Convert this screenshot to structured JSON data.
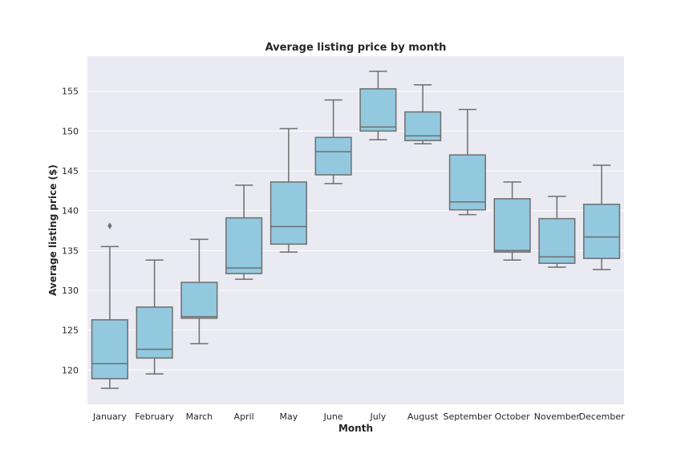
{
  "chart_data": {
    "type": "box",
    "title": "Average listing price by month",
    "xlabel": "Month",
    "ylabel": "Average listing price ($)",
    "ylim": [
      115.7,
      159.4
    ],
    "yticks": [
      120,
      125,
      130,
      135,
      140,
      145,
      150,
      155
    ],
    "grid": true,
    "colors": {
      "box_fill": "#92c9df",
      "box_line": "#6e6e6e",
      "background": "#eaeaf2",
      "grid": "#ffffff"
    },
    "categories": [
      "January",
      "February",
      "March",
      "April",
      "May",
      "June",
      "July",
      "August",
      "September",
      "October",
      "November",
      "December"
    ],
    "boxes": [
      {
        "whisker_low": 117.7,
        "q1": 118.9,
        "median": 120.8,
        "q3": 126.3,
        "whisker_high": 135.5,
        "outliers": [
          138.1
        ]
      },
      {
        "whisker_low": 119.5,
        "q1": 121.5,
        "median": 122.6,
        "q3": 127.9,
        "whisker_high": 133.8,
        "outliers": []
      },
      {
        "whisker_low": 123.3,
        "q1": 126.5,
        "median": 126.7,
        "q3": 131.0,
        "whisker_high": 136.4,
        "outliers": []
      },
      {
        "whisker_low": 131.4,
        "q1": 132.1,
        "median": 132.8,
        "q3": 139.1,
        "whisker_high": 143.2,
        "outliers": []
      },
      {
        "whisker_low": 134.8,
        "q1": 135.8,
        "median": 138.0,
        "q3": 143.6,
        "whisker_high": 150.3,
        "outliers": []
      },
      {
        "whisker_low": 143.4,
        "q1": 144.5,
        "median": 147.4,
        "q3": 149.2,
        "whisker_high": 153.9,
        "outliers": []
      },
      {
        "whisker_low": 148.9,
        "q1": 150.0,
        "median": 150.5,
        "q3": 155.3,
        "whisker_high": 157.5,
        "outliers": []
      },
      {
        "whisker_low": 148.4,
        "q1": 148.8,
        "median": 149.4,
        "q3": 152.4,
        "whisker_high": 155.8,
        "outliers": []
      },
      {
        "whisker_low": 139.5,
        "q1": 140.1,
        "median": 141.1,
        "q3": 147.0,
        "whisker_high": 152.7,
        "outliers": []
      },
      {
        "whisker_low": 133.8,
        "q1": 134.8,
        "median": 135.0,
        "q3": 141.5,
        "whisker_high": 143.6,
        "outliers": []
      },
      {
        "whisker_low": 132.9,
        "q1": 133.4,
        "median": 134.2,
        "q3": 139.0,
        "whisker_high": 141.8,
        "outliers": []
      },
      {
        "whisker_low": 132.6,
        "q1": 134.0,
        "median": 136.7,
        "q3": 140.8,
        "whisker_high": 145.7,
        "outliers": []
      }
    ]
  }
}
